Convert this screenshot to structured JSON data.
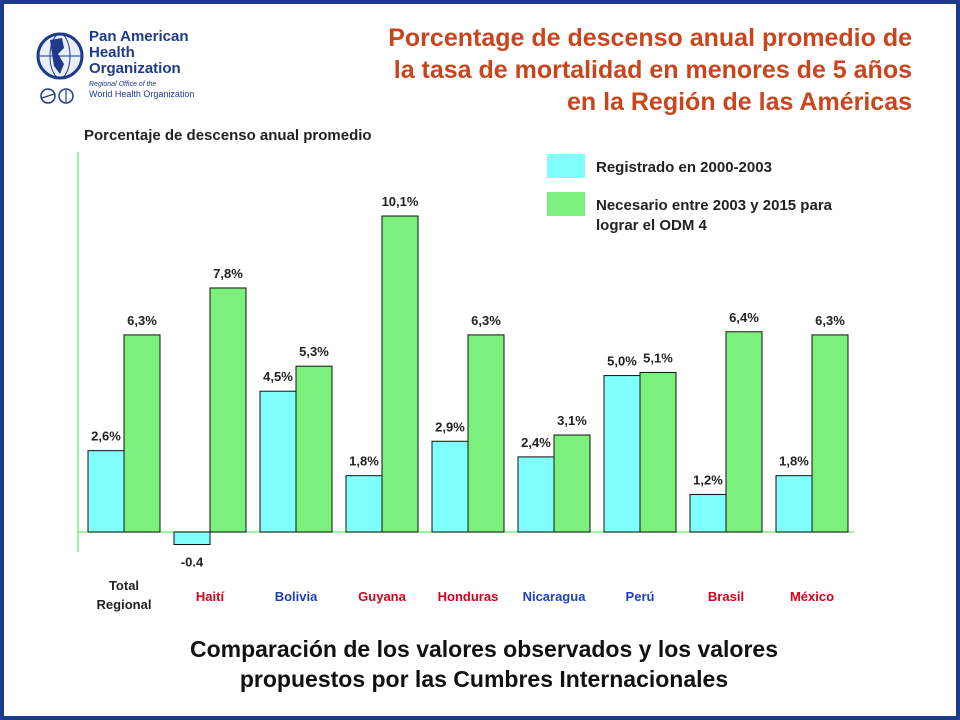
{
  "header": {
    "title_lines": [
      "Porcentage de descenso anual promedio de",
      "la tasa de mortalidad en menores de 5 años",
      "en la Región de las Américas"
    ]
  },
  "logo": {
    "name_lines": [
      "Pan American",
      "Health",
      "Organization"
    ],
    "sub_lines": [
      "Regional Office of the",
      "World Health Organization"
    ]
  },
  "chart_data": {
    "type": "bar",
    "ylabel": "Porcentaje de descenso anual promedio",
    "categories": [
      "Total Regional",
      "Haití",
      "Bolivia",
      "Guyana",
      "Honduras",
      "Nicaragua",
      "Perú",
      "Brasil",
      "México"
    ],
    "category_labels": [
      [
        "Total",
        "Regional"
      ],
      [
        "Haití"
      ],
      [
        "Bolivia"
      ],
      [
        "Guyana"
      ],
      [
        "Honduras"
      ],
      [
        "Nicaragua"
      ],
      [
        "Perú"
      ],
      [
        "Brasil"
      ],
      [
        "México"
      ]
    ],
    "series": [
      {
        "name": "Registrado en 2000-2003",
        "color": "#80ffff",
        "values": [
          2.6,
          -0.4,
          4.5,
          1.8,
          2.9,
          2.4,
          5.0,
          1.2,
          1.8
        ],
        "data_labels": [
          "2,6%",
          "-0.4",
          "4,5%",
          "1,8%",
          "2,9%",
          "2,4%",
          "5,0%",
          "1,2%",
          "1,8%"
        ]
      },
      {
        "name": "Necesario entre 2003 y 2015 para lograr el ODM 4",
        "color": "#7cf07c",
        "values": [
          6.3,
          7.8,
          5.3,
          10.1,
          6.3,
          3.1,
          5.1,
          6.4,
          6.3
        ],
        "data_labels": [
          "6,3%",
          "7,8%",
          "5,3%",
          "10,1%",
          "6,3%",
          "3,1%",
          "5,1%",
          "6,4%",
          "6,3%"
        ]
      }
    ],
    "legend_lines": [
      [
        "Registrado en 2000-2003"
      ],
      [
        "Necesario entre 2003 y 2015 para",
        "lograr el ODM 4"
      ]
    ],
    "category_label_colors": [
      "#222222",
      "#d9001b",
      "#1f3fbf",
      "#d9001b",
      "#d9001b",
      "#1f3fbf",
      "#1f3fbf",
      "#d9001b",
      "#d9001b"
    ],
    "ylim": [
      -0.7,
      12.1
    ],
    "grid": false,
    "legend": "top-right"
  },
  "footer": {
    "caption_lines": [
      "Comparación de los valores observados y los valores",
      "propuestos por las Cumbres Internacionales"
    ]
  }
}
